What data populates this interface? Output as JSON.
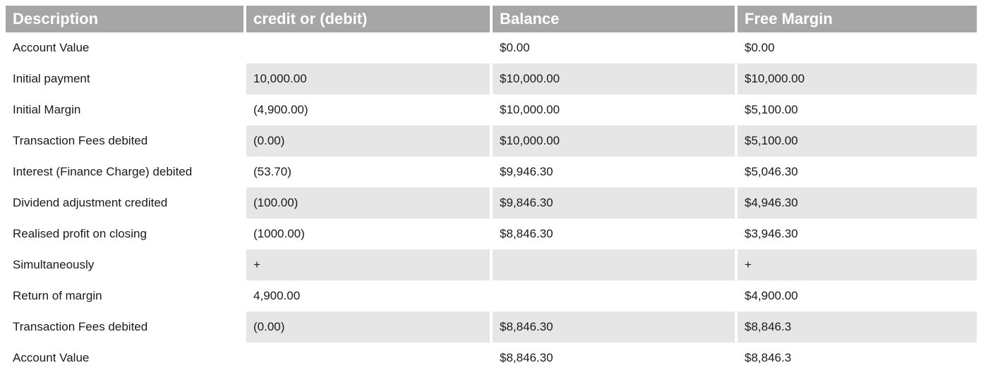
{
  "table": {
    "headers": [
      "Description",
      "credit or (debit)",
      "Balance",
      "Free Margin"
    ],
    "rows": [
      [
        "Account Value",
        "",
        "$0.00",
        "$0.00"
      ],
      [
        "Initial payment",
        "10,000.00",
        "$10,000.00",
        "$10,000.00"
      ],
      [
        "Initial Margin",
        "(4,900.00)",
        "$10,000.00",
        "$5,100.00"
      ],
      [
        "Transaction Fees debited",
        "(0.00)",
        "$10,000.00",
        "$5,100.00"
      ],
      [
        "Interest (Finance Charge) debited",
        "(53.70)",
        "$9,946.30",
        "$5,046.30"
      ],
      [
        "Dividend adjustment credited",
        "(100.00)",
        "$9,846.30",
        "$4,946.30"
      ],
      [
        "Realised profit on closing",
        "(1000.00)",
        "$8,846.30",
        "$3,946.30"
      ],
      [
        "Simultaneously",
        "+",
        "",
        "+"
      ],
      [
        "Return of margin",
        "4,900.00",
        "",
        "$4,900.00"
      ],
      [
        "Transaction Fees debited",
        "(0.00)",
        "$8,846.30",
        "$8,846.3"
      ],
      [
        "Account Value",
        "",
        "$8,846.30",
        "$8,846.3"
      ]
    ],
    "shaded_rows": [
      1,
      3,
      5,
      7,
      9
    ]
  }
}
